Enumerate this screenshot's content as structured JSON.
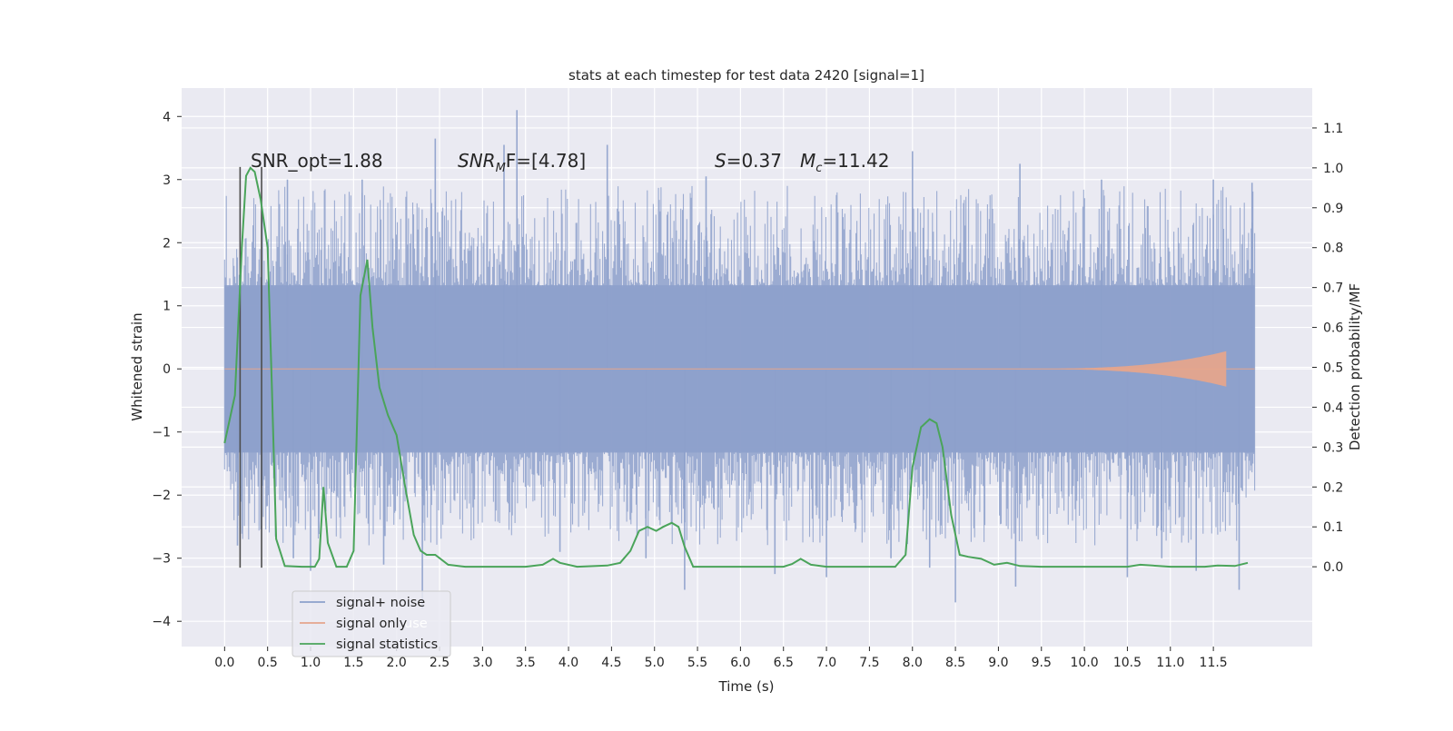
{
  "chart_data": {
    "type": "line",
    "title": "stats at each timestep for test data 2420 [signal=1]",
    "xlabel": "Time (s)",
    "ylabel_left": "Whitened strain",
    "ylabel_right": "Detection probability/MF",
    "xlim": [
      -0.5,
      12.65
    ],
    "ylim_left": [
      -4.4,
      4.45
    ],
    "ylim_right": [
      -0.2,
      1.2
    ],
    "x_ticks": [
      "0.0",
      "0.5",
      "1.0",
      "1.5",
      "2.0",
      "2.5",
      "3.0",
      "3.5",
      "4.0",
      "4.5",
      "5.0",
      "5.5",
      "6.0",
      "6.5",
      "7.0",
      "7.5",
      "8.0",
      "8.5",
      "9.0",
      "9.5",
      "10.0",
      "10.5",
      "11.0",
      "11.5"
    ],
    "y_ticks_left": [
      "4",
      "3",
      "2",
      "1",
      "0",
      "−1",
      "−2",
      "−3",
      "−4"
    ],
    "y_ticks_right": [
      "1.1",
      "1.0",
      "0.9",
      "0.8",
      "0.7",
      "0.6",
      "0.5",
      "0.4",
      "0.3",
      "0.2",
      "0.1",
      "0.0"
    ],
    "grid": true,
    "legend_position": "lower-left",
    "legend_ghost_text": "use",
    "annotations": {
      "snr_opt": "SNR_opt=1.88",
      "snr_mf_label": "SNR",
      "snr_mf_sub": "M",
      "snr_mf_tail": "F=[4.78]",
      "s_label": "S",
      "s_value": "=0.37",
      "mc_label": "M",
      "mc_sub": "c",
      "mc_value": "=11.42"
    },
    "vertical_markers": [
      {
        "x": 0.18,
        "y_top": 3.2,
        "y_bottom": -3.15
      },
      {
        "x": 0.43,
        "y_top": 3.2,
        "y_bottom": -3.15
      }
    ],
    "series": [
      {
        "name": "signal+ noise",
        "axis": "left",
        "color": "#8da0cb",
        "x_range": [
          0.0,
          11.98
        ],
        "typical_band": [
          -1.7,
          1.7
        ],
        "spikes": [
          {
            "x": 3.4,
            "y": 4.1
          },
          {
            "x": 2.45,
            "y": 3.65
          },
          {
            "x": 4.45,
            "y": 3.55
          },
          {
            "x": 3.25,
            "y": 3.55
          },
          {
            "x": 8.0,
            "y": 3.45
          },
          {
            "x": 9.25,
            "y": 3.25
          },
          {
            "x": 0.73,
            "y": 3.0
          },
          {
            "x": 5.6,
            "y": 3.05
          },
          {
            "x": 10.2,
            "y": 3.0
          },
          {
            "x": 11.5,
            "y": 3.0
          },
          {
            "x": 11.95,
            "y": 2.95
          },
          {
            "x": 1.6,
            "y": 3.0
          },
          {
            "x": 2.3,
            "y": -3.8
          },
          {
            "x": 8.5,
            "y": -3.7
          },
          {
            "x": 11.8,
            "y": -3.5
          },
          {
            "x": 5.35,
            "y": -3.5
          },
          {
            "x": 9.2,
            "y": -3.45
          },
          {
            "x": 10.5,
            "y": -3.3
          },
          {
            "x": 7.0,
            "y": -3.3
          },
          {
            "x": 3.9,
            "y": -2.9
          },
          {
            "x": 0.15,
            "y": -2.8
          },
          {
            "x": 1.85,
            "y": -3.1
          },
          {
            "x": 6.4,
            "y": -3.25
          },
          {
            "x": 8.2,
            "y": -3.15
          },
          {
            "x": 1.0,
            "y": -3.2
          },
          {
            "x": 11.3,
            "y": -3.2
          },
          {
            "x": 0.8,
            "y": -3.0
          },
          {
            "x": 4.9,
            "y": -3.0
          },
          {
            "x": 10.9,
            "y": -3.0
          },
          {
            "x": 7.75,
            "y": -3.0
          }
        ]
      },
      {
        "name": "signal only",
        "axis": "left",
        "color": "#e5a58c",
        "chirp_start": 9.0,
        "chirp_end": 11.65,
        "peak_amplitude": 0.28
      },
      {
        "name": "signal statistics",
        "axis": "right",
        "color": "#4aa45a",
        "x": [
          0.0,
          0.12,
          0.2,
          0.25,
          0.3,
          0.35,
          0.42,
          0.5,
          0.55,
          0.6,
          0.7,
          0.9,
          1.05,
          1.1,
          1.15,
          1.2,
          1.3,
          1.42,
          1.5,
          1.58,
          1.66,
          1.72,
          1.8,
          1.9,
          2.0,
          2.1,
          2.2,
          2.28,
          2.35,
          2.45,
          2.6,
          2.8,
          3.5,
          3.7,
          3.82,
          3.9,
          4.1,
          4.45,
          4.6,
          4.72,
          4.82,
          4.92,
          5.02,
          5.1,
          5.2,
          5.28,
          5.35,
          5.45,
          5.6,
          6.0,
          6.5,
          6.6,
          6.7,
          6.82,
          7.0,
          7.8,
          7.92,
          8.0,
          8.1,
          8.2,
          8.28,
          8.35,
          8.45,
          8.55,
          8.65,
          8.8,
          8.95,
          9.1,
          9.25,
          9.5,
          10.5,
          10.65,
          11.0,
          11.4,
          11.55,
          11.75,
          11.9
        ],
        "y": [
          0.31,
          0.43,
          0.8,
          0.98,
          1.0,
          0.99,
          0.92,
          0.8,
          0.45,
          0.07,
          0.002,
          0.0,
          0.0,
          0.02,
          0.2,
          0.06,
          0.0,
          0.0,
          0.04,
          0.68,
          0.77,
          0.6,
          0.45,
          0.38,
          0.33,
          0.2,
          0.08,
          0.04,
          0.03,
          0.03,
          0.005,
          0.0,
          0.0,
          0.005,
          0.02,
          0.01,
          0.0,
          0.003,
          0.01,
          0.04,
          0.09,
          0.1,
          0.09,
          0.1,
          0.11,
          0.1,
          0.05,
          0.0,
          0.0,
          0.0,
          0.0,
          0.007,
          0.02,
          0.005,
          0.0,
          0.0,
          0.03,
          0.25,
          0.35,
          0.37,
          0.36,
          0.3,
          0.13,
          0.03,
          0.025,
          0.02,
          0.005,
          0.01,
          0.002,
          0.0,
          0.0,
          0.005,
          0.0,
          0.0,
          0.003,
          0.002,
          0.01
        ]
      }
    ]
  }
}
